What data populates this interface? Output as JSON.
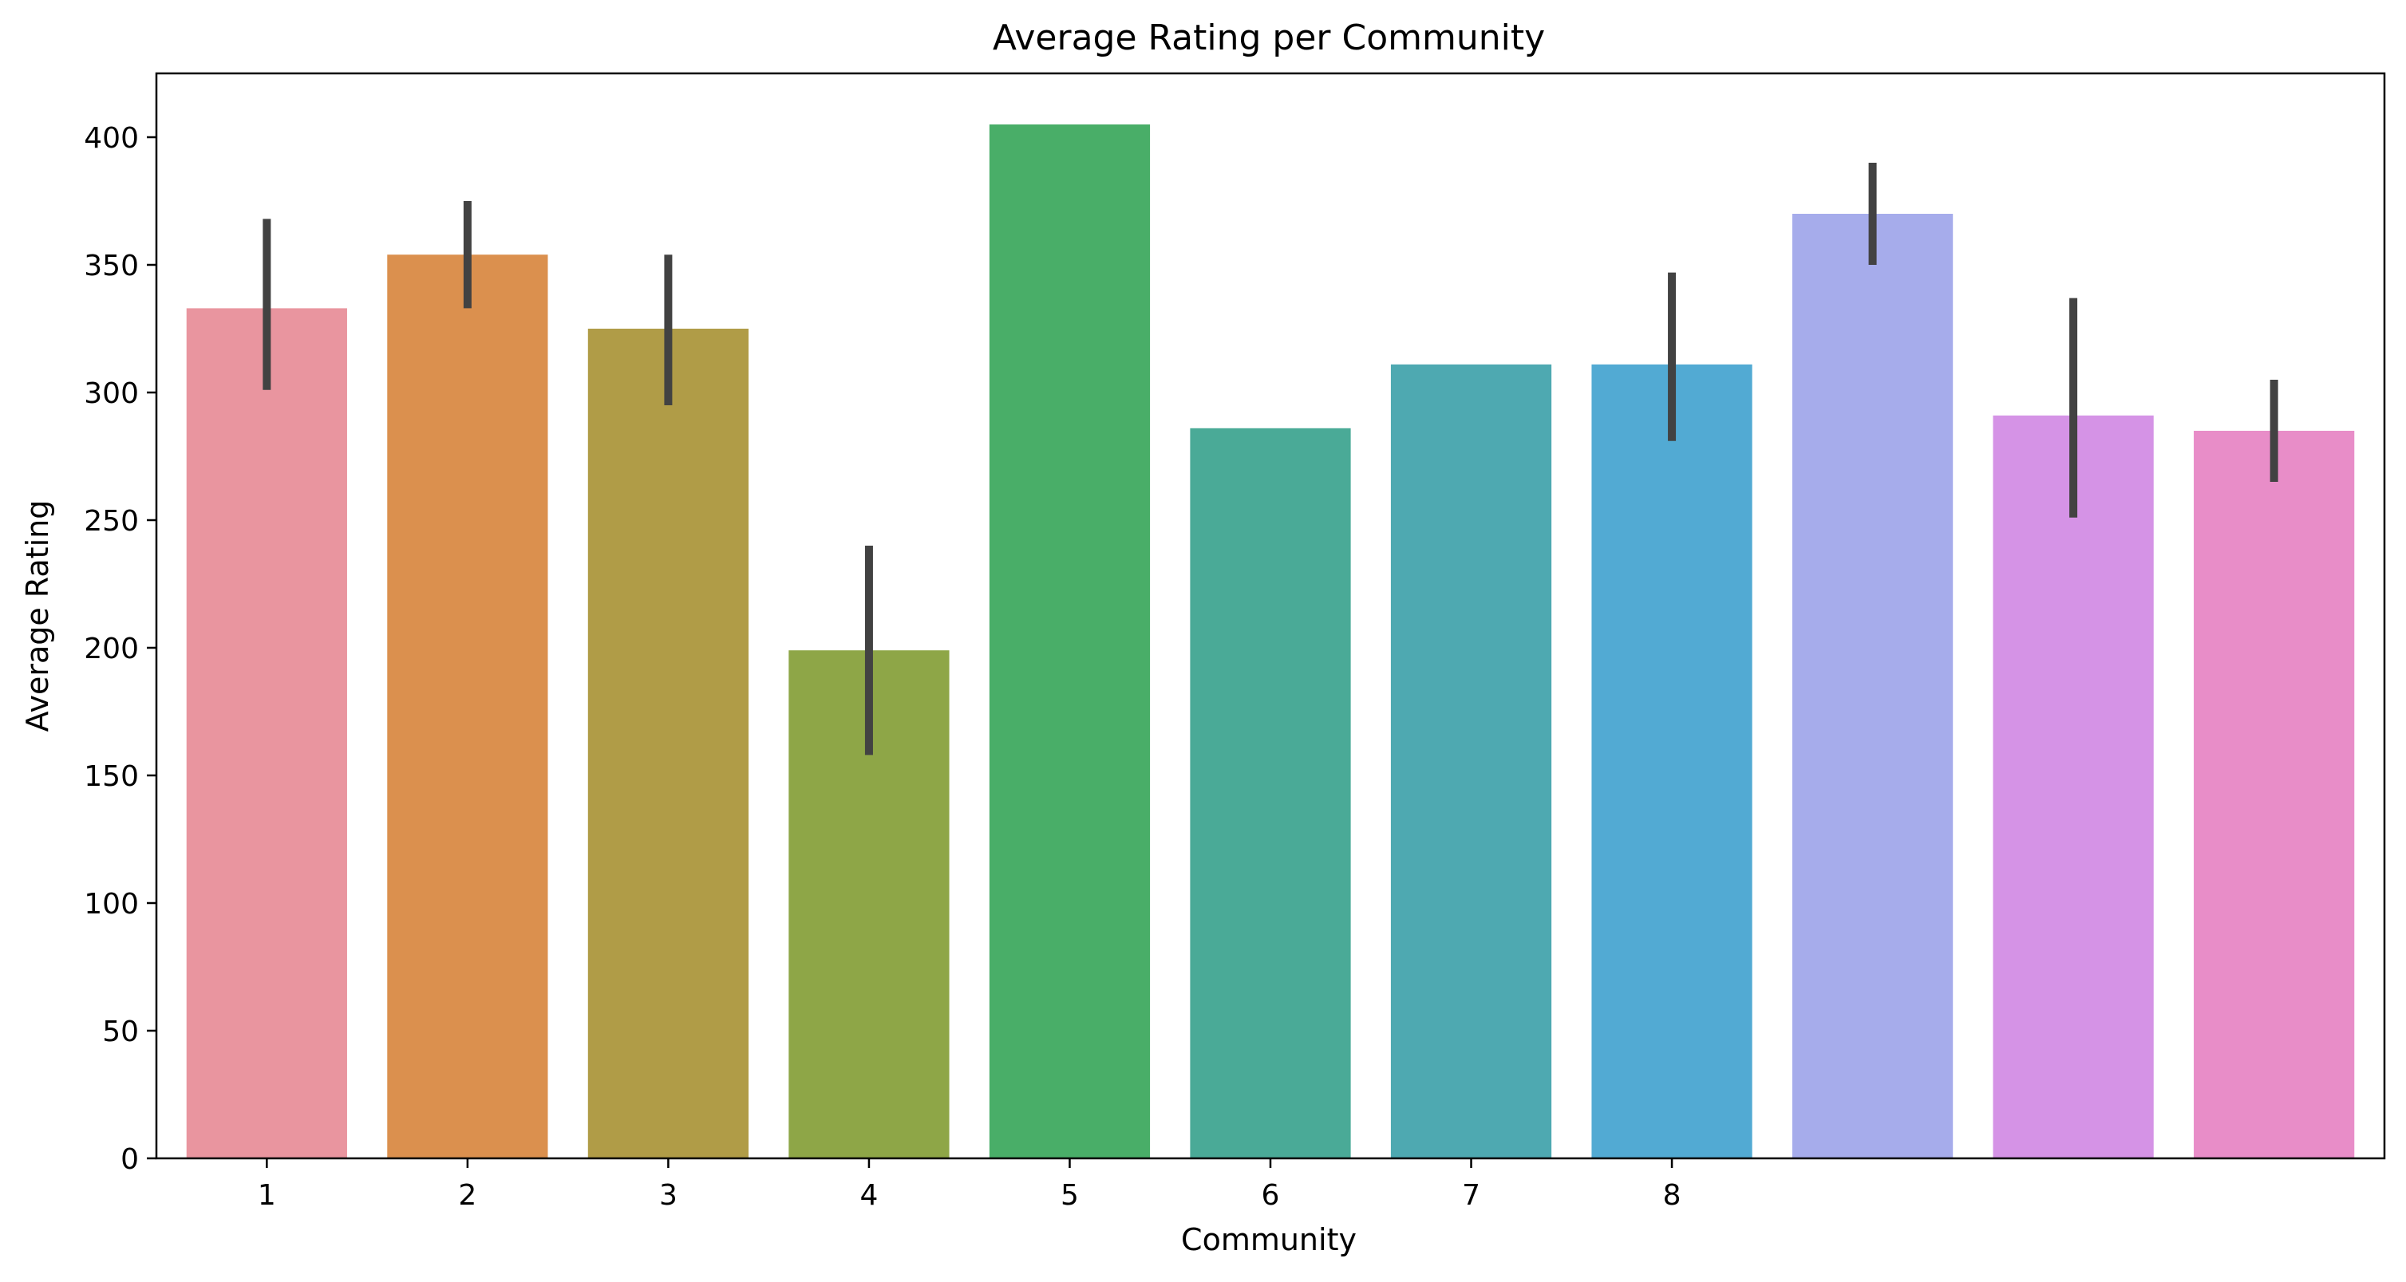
{
  "chart_data": {
    "type": "bar",
    "title": "Average Rating per Community",
    "xlabel": "Community",
    "ylabel": "Average Rating",
    "ylim": [
      0,
      425
    ],
    "yticks": [
      0,
      50,
      100,
      150,
      200,
      250,
      300,
      350,
      400
    ],
    "ytick_labels": [
      "0",
      "50",
      "100",
      "150",
      "200",
      "250",
      "300",
      "350",
      "400"
    ],
    "xtick_labels": [
      "1",
      "2",
      "3",
      "4",
      "5",
      "6",
      "7",
      "8",
      "",
      "",
      ""
    ],
    "values": [
      333,
      354,
      325,
      199,
      405,
      286,
      311,
      311,
      370,
      291,
      285
    ],
    "error_bars": [
      [
        301,
        368
      ],
      [
        333,
        375
      ],
      [
        295,
        354
      ],
      [
        158,
        240
      ],
      null,
      null,
      null,
      [
        281,
        347
      ],
      [
        350,
        390
      ],
      [
        251,
        337
      ],
      [
        265,
        305
      ]
    ],
    "colors": [
      "#e9959f",
      "#db904e",
      "#b09c47",
      "#8ea647",
      "#49ae68",
      "#4aaa97",
      "#4ea9b1",
      "#52aad3",
      "#a6aceb",
      "#d593e6",
      "#e88dc8"
    ],
    "error_color": "#424242",
    "grid": false,
    "legend": "none"
  }
}
